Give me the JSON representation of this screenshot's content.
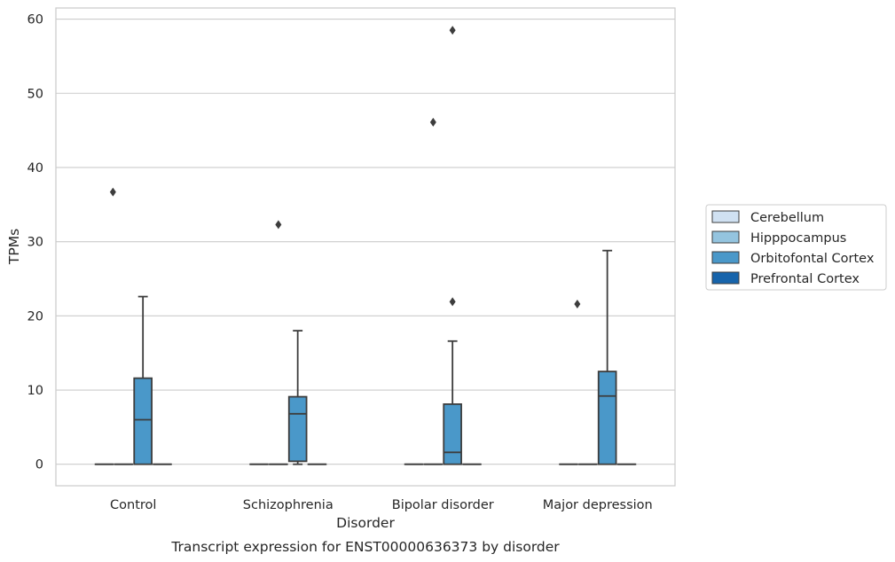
{
  "chart_data": {
    "type": "box",
    "xlabel": "Disorder",
    "ylabel": "TPMs",
    "caption": "Transcript expression for ENST00000636373 by disorder",
    "categories": [
      "Control",
      "Schizophrenia",
      "Bipolar disorder",
      "Major depression"
    ],
    "ylim": [
      -2.9,
      61.5
    ],
    "yticks": [
      "0",
      "10",
      "20",
      "30",
      "40",
      "50",
      "60"
    ],
    "grid": "horizontal",
    "legend_position": "right",
    "series": [
      {
        "name": "Cerebellum",
        "color": "#d0e1f2",
        "boxes": [
          {
            "q1": 0,
            "median": 0,
            "q3": 0,
            "whisker_low": 0,
            "whisker_high": 0,
            "outliers": []
          },
          {
            "q1": 0,
            "median": 0,
            "q3": 0,
            "whisker_low": 0,
            "whisker_high": 0,
            "outliers": []
          },
          {
            "q1": 0,
            "median": 0,
            "q3": 0,
            "whisker_low": 0,
            "whisker_high": 0,
            "outliers": []
          },
          {
            "q1": 0,
            "median": 0,
            "q3": 0,
            "whisker_low": 0,
            "whisker_high": 0,
            "outliers": []
          }
        ]
      },
      {
        "name": "Hipppocampus",
        "color": "#94c4df",
        "boxes": [
          {
            "q1": 0,
            "median": 0,
            "q3": 0,
            "whisker_low": 0,
            "whisker_high": 0,
            "outliers": []
          },
          {
            "q1": 0,
            "median": 0,
            "q3": 0,
            "whisker_low": 0,
            "whisker_high": 0,
            "outliers": [
              32.3
            ]
          },
          {
            "q1": 0,
            "median": 0,
            "q3": 0,
            "whisker_low": 0,
            "whisker_high": 0,
            "outliers": [
              46.1
            ]
          },
          {
            "q1": 0,
            "median": 0,
            "q3": 0,
            "whisker_low": 0,
            "whisker_high": 0,
            "outliers": []
          }
        ]
      },
      {
        "name": "Orbitofontal Cortex",
        "color": "#4a98c9",
        "boxes": [
          {
            "q1": 0,
            "median": 6.0,
            "q3": 11.6,
            "whisker_low": 0,
            "whisker_high": 22.6,
            "outliers": []
          },
          {
            "q1": 0.4,
            "median": 6.8,
            "q3": 9.1,
            "whisker_low": 0,
            "whisker_high": 18.0,
            "outliers": []
          },
          {
            "q1": 0,
            "median": 1.6,
            "q3": 8.1,
            "whisker_low": 0,
            "whisker_high": 16.6,
            "outliers": [
              21.9,
              58.5
            ]
          },
          {
            "q1": 0,
            "median": 9.2,
            "q3": 12.5,
            "whisker_low": 0,
            "whisker_high": 28.8,
            "outliers": []
          }
        ]
      },
      {
        "name": "Prefrontal Cortex",
        "color": "#1764ab",
        "boxes": [
          {
            "q1": 0,
            "median": 0,
            "q3": 0,
            "whisker_low": 0,
            "whisker_high": 0,
            "outliers": []
          },
          {
            "q1": 0,
            "median": 0,
            "q3": 0,
            "whisker_low": 0,
            "whisker_high": 0,
            "outliers": []
          },
          {
            "q1": 0,
            "median": 0,
            "q3": 0,
            "whisker_low": 0,
            "whisker_high": 0,
            "outliers": []
          },
          {
            "q1": 0,
            "median": 0,
            "q3": 0,
            "whisker_low": 0,
            "whisker_high": 0,
            "outliers": []
          }
        ]
      }
    ],
    "extra_outliers": [
      {
        "category": "Control",
        "offset": "left",
        "value": 36.7
      },
      {
        "category": "Major depression",
        "offset": "left",
        "value": 21.6
      }
    ]
  }
}
